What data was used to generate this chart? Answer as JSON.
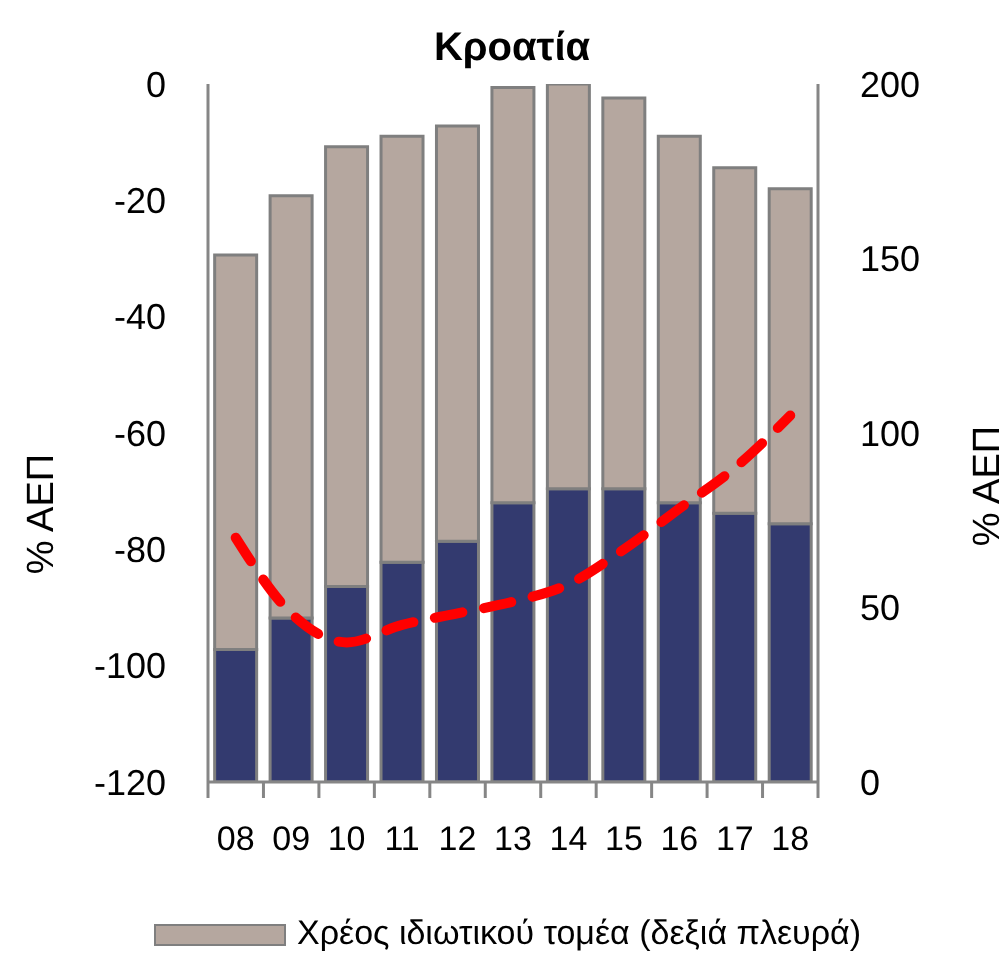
{
  "chart_data": {
    "type": "bar",
    "title": "Κροατία",
    "ylabel": "% ΑΕΠ",
    "y2label": "% ΑΕΠ",
    "categories": [
      "08",
      "09",
      "10",
      "11",
      "12",
      "13",
      "14",
      "15",
      "16",
      "17",
      "18"
    ],
    "stacked": true,
    "series": [
      {
        "color": "#333a6f",
        "axis": "y2",
        "values": [
          38,
          47,
          56,
          63,
          69,
          80,
          84,
          84,
          80,
          77,
          74
        ]
      },
      {
        "name": "Χρέος ιδιωτικού τομέα (δεξιά πλευρά)",
        "color": "#b5a79f",
        "axis": "y2",
        "values": [
          113,
          121,
          126,
          122,
          119,
          119,
          116,
          112,
          105,
          99,
          96
        ]
      },
      {
        "type": "line",
        "color": "#ff0000",
        "line_style": "dashed",
        "values": [
          -78,
          -91,
          -96,
          -93,
          -91,
          -89,
          -86,
          -80,
          -73,
          -66,
          -57
        ]
      }
    ],
    "ylim": [
      -120,
      0
    ],
    "yticks": [
      -120,
      -100,
      -80,
      -60,
      -40,
      -20,
      0
    ],
    "y2lim": [
      0,
      200
    ],
    "y2ticks": [
      0,
      50,
      100,
      150,
      200
    ],
    "legend": "bottom"
  }
}
